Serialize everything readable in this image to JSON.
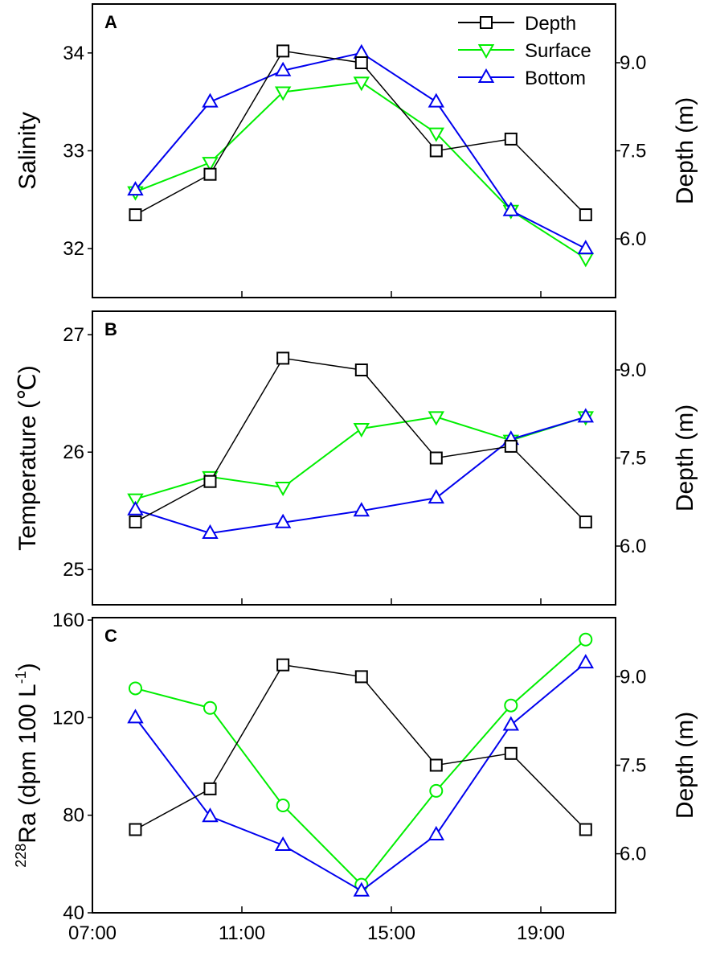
{
  "chart_data": [
    {
      "type": "line",
      "panel_label": "A",
      "x": [
        "08:10",
        "10:10",
        "12:05",
        "14:10",
        "16:10",
        "18:10",
        "20:10"
      ],
      "x_hours": [
        8.15,
        10.15,
        12.1,
        14.2,
        16.2,
        18.2,
        20.2
      ],
      "xlim": [
        7,
        21
      ],
      "xticks": [
        "07:00",
        "11:00",
        "15:00",
        "19:00"
      ],
      "xtick_hours": [
        7,
        11,
        15,
        19
      ],
      "ylabel": "Salinity",
      "ylim": [
        31.5,
        34.5
      ],
      "yticks": [
        "32",
        "33",
        "34"
      ],
      "y2label": "Depth (m)",
      "y2lim": [
        5.0,
        10.0
      ],
      "y2ticks": [
        "6.0",
        "7.5",
        "9.0"
      ],
      "series": [
        {
          "name": "Depth",
          "axis": "right",
          "color": "#000000",
          "marker": "square",
          "values": [
            6.41,
            7.1,
            9.2,
            9.0,
            7.5,
            7.7,
            6.41
          ]
        },
        {
          "name": "Surface",
          "axis": "left",
          "color": "#00ee00",
          "marker": "triangle-down",
          "values": [
            32.58,
            32.88,
            33.6,
            33.7,
            33.18,
            32.39,
            31.9
          ]
        },
        {
          "name": "Bottom",
          "axis": "left",
          "color": "#0000ee",
          "marker": "triangle-up",
          "values": [
            32.6,
            33.5,
            33.82,
            34.0,
            33.5,
            32.39,
            32.0
          ]
        }
      ],
      "legend": "top-right"
    },
    {
      "type": "line",
      "panel_label": "B",
      "x_hours": [
        8.15,
        10.15,
        12.1,
        14.2,
        16.2,
        18.2,
        20.2
      ],
      "xlim": [
        7,
        21
      ],
      "xtick_hours": [
        7,
        11,
        15,
        19
      ],
      "ylabel": "Temperature (℃)",
      "ylim": [
        24.7,
        27.2
      ],
      "yticks": [
        "25",
        "26",
        "27"
      ],
      "y2label": "Depth (m)",
      "y2lim": [
        5.0,
        10.0
      ],
      "y2ticks": [
        "6.0",
        "7.5",
        "9.0"
      ],
      "series": [
        {
          "name": "Depth",
          "axis": "right",
          "color": "#000000",
          "marker": "square",
          "values": [
            6.41,
            7.1,
            9.2,
            9.0,
            7.5,
            7.7,
            6.41
          ]
        },
        {
          "name": "Surface",
          "axis": "left",
          "color": "#00ee00",
          "marker": "triangle-down",
          "values": [
            25.6,
            25.79,
            25.7,
            26.2,
            26.3,
            26.1,
            26.3
          ]
        },
        {
          "name": "Bottom",
          "axis": "left",
          "color": "#0000ee",
          "marker": "triangle-up",
          "values": [
            25.51,
            25.31,
            25.4,
            25.5,
            25.61,
            26.11,
            26.3
          ]
        }
      ]
    },
    {
      "type": "line",
      "panel_label": "C",
      "x_hours": [
        8.15,
        10.15,
        12.1,
        14.2,
        16.2,
        18.2,
        20.2
      ],
      "xlim": [
        7,
        21
      ],
      "xticks": [
        "07:00",
        "11:00",
        "15:00",
        "19:00"
      ],
      "xtick_hours": [
        7,
        11,
        15,
        19
      ],
      "ylabel_sup": "228",
      "ylabel_main": "Ra (dpm 100 L",
      "ylabel_exp": "-1",
      "ylabel_close": ")",
      "ylim": [
        40,
        161
      ],
      "yticks": [
        "40",
        "80",
        "120",
        "160"
      ],
      "y2label": "Depth (m)",
      "y2lim": [
        5.0,
        10.0
      ],
      "y2ticks": [
        "6.0",
        "7.5",
        "9.0"
      ],
      "series": [
        {
          "name": "Depth",
          "axis": "right",
          "color": "#000000",
          "marker": "square",
          "values": [
            6.41,
            7.1,
            9.2,
            9.0,
            7.5,
            7.7,
            6.41
          ]
        },
        {
          "name": "Surface",
          "axis": "left",
          "color": "#00ee00",
          "marker": "circle",
          "values": [
            132,
            124,
            84,
            51.5,
            90,
            125,
            152
          ]
        },
        {
          "name": "Bottom",
          "axis": "left",
          "color": "#0000ee",
          "marker": "triangle-up",
          "values": [
            120,
            79.5,
            67.7,
            49,
            72,
            117,
            142.5
          ]
        }
      ]
    }
  ]
}
